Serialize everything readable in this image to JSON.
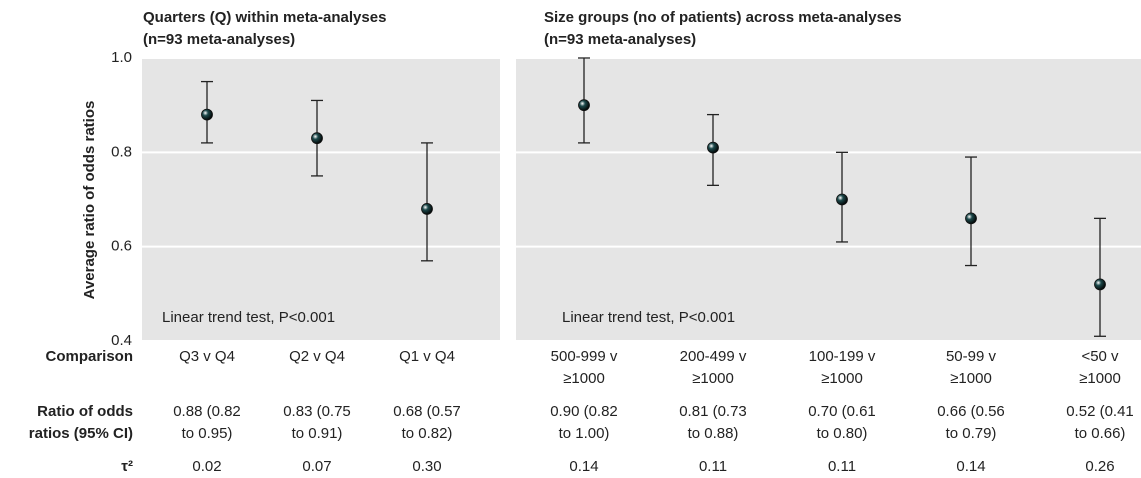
{
  "chart_data": [
    {
      "type": "errorbar",
      "title": "Quarters (Q) within meta-analyses\n(n=93 meta-analyses)",
      "ylabel": "Average ratio of odds ratios",
      "annotation": "Linear trend test, P<0.001",
      "categories": [
        "Q3 v Q4",
        "Q2 v Q4",
        "Q1 v Q4"
      ],
      "values": [
        0.88,
        0.83,
        0.68
      ],
      "ci_lower": [
        0.82,
        0.75,
        0.57
      ],
      "ci_upper": [
        0.95,
        0.91,
        0.82
      ],
      "value_labels": [
        "0.88 (0.82\nto 0.95)",
        "0.83 (0.75\nto 0.91)",
        "0.68 (0.57\nto 0.82)"
      ],
      "tau_squared": [
        "0.02",
        "0.07",
        "0.30"
      ],
      "ylim": [
        0.4,
        1.0
      ],
      "yticks": [
        0.4,
        0.6,
        0.8,
        {
          "value": 1.0,
          "label": "1.0"
        }
      ],
      "color": "#1d4a4c",
      "grid": true
    },
    {
      "type": "errorbar",
      "title": "Size groups (no of patients) across meta-analyses\n(n=93 meta-analyses)",
      "annotation": "Linear trend test, P<0.001",
      "categories": [
        "500-999 v\n≥1000",
        "200-499 v\n≥1000",
        "100-199 v\n≥1000",
        "50-99 v\n≥1000",
        "<50 v\n≥1000"
      ],
      "values": [
        0.9,
        0.81,
        0.7,
        0.66,
        0.52
      ],
      "ci_lower": [
        0.82,
        0.73,
        0.61,
        0.56,
        0.41
      ],
      "ci_upper": [
        1.0,
        0.88,
        0.8,
        0.79,
        0.66
      ],
      "value_labels": [
        "0.90 (0.82\nto 1.00)",
        "0.81 (0.73\nto 0.88)",
        "0.70 (0.61\nto 0.80)",
        "0.66 (0.56\nto 0.79)",
        "0.52 (0.41\nto 0.66)"
      ],
      "tau_squared": [
        "0.14",
        "0.11",
        "0.11",
        "0.14",
        "0.26"
      ],
      "ylim": [
        0.4,
        1.0
      ],
      "yticks": [
        0.4,
        0.6,
        0.8,
        1.0
      ],
      "color": "#1d4a4c",
      "grid": true
    }
  ],
  "row_labels": [
    "Comparison",
    "Ratio of odds\nratios (95% CI)",
    "τ²"
  ]
}
